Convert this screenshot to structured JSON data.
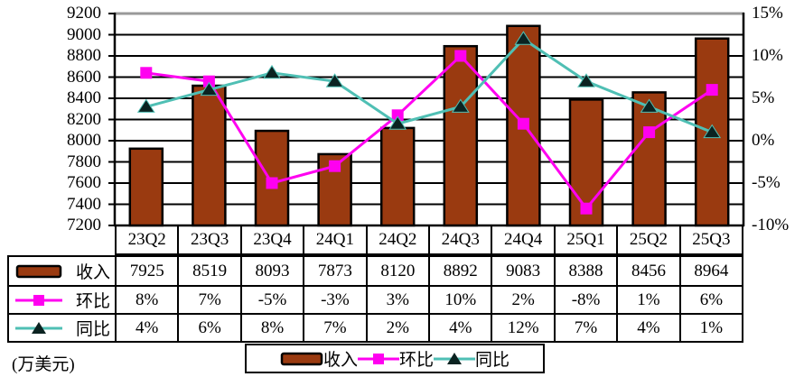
{
  "unit_label": "(万美元)",
  "colors": {
    "bar": "#9A3A10",
    "bar_border": "#000000",
    "qoq_line": "#FF00F0",
    "yoy_line": "#4FBFB4",
    "yoy_marker": "#0B2321",
    "grid": "#000000",
    "plot_top_border": "#999999",
    "text": "#000000"
  },
  "chart_data": {
    "type": "bar+line combo",
    "title": "",
    "categories": [
      "23Q2",
      "23Q3",
      "23Q4",
      "24Q1",
      "24Q2",
      "24Q3",
      "24Q4",
      "25Q1",
      "25Q2",
      "25Q3"
    ],
    "series": [
      {
        "name": "收入",
        "type": "bar",
        "axis": "left",
        "values": [
          7925,
          8519,
          8093,
          7873,
          8120,
          8892,
          9083,
          8388,
          8456,
          8964
        ]
      },
      {
        "name": "环比",
        "type": "line",
        "marker": "square",
        "axis": "right",
        "values": [
          8,
          7,
          -5,
          -3,
          3,
          10,
          2,
          -8,
          1,
          6
        ]
      },
      {
        "name": "同比",
        "type": "line",
        "marker": "triangle",
        "axis": "right",
        "values": [
          4,
          6,
          8,
          7,
          2,
          4,
          12,
          7,
          4,
          1
        ]
      }
    ],
    "left_axis": {
      "min": 7200,
      "max": 9200,
      "step": 200,
      "ticks": [
        "9200",
        "9000",
        "8800",
        "8600",
        "8400",
        "8200",
        "8000",
        "7800",
        "7600",
        "7400",
        "7200"
      ]
    },
    "right_axis": {
      "min": -10,
      "max": 15,
      "step": 5,
      "ticks": [
        "15%",
        "10%",
        "5%",
        "0%",
        "-5%",
        "-10%"
      ]
    },
    "grid": true,
    "legend_position": "bottom"
  },
  "table": {
    "header": [
      "23Q2",
      "23Q3",
      "23Q4",
      "24Q1",
      "24Q2",
      "24Q3",
      "24Q4",
      "25Q1",
      "25Q2",
      "25Q3"
    ],
    "rows": [
      {
        "label": "收入",
        "swatch": "bar",
        "values": [
          "7925",
          "8519",
          "8093",
          "7873",
          "8120",
          "8892",
          "9083",
          "8388",
          "8456",
          "8964"
        ]
      },
      {
        "label": "环比",
        "swatch": "square",
        "values": [
          "8%",
          "7%",
          "-5%",
          "-3%",
          "3%",
          "10%",
          "2%",
          "-8%",
          "1%",
          "6%"
        ]
      },
      {
        "label": "同比",
        "swatch": "triangle",
        "values": [
          "4%",
          "6%",
          "8%",
          "7%",
          "2%",
          "4%",
          "12%",
          "7%",
          "4%",
          "1%"
        ]
      }
    ]
  },
  "legend": {
    "items": [
      {
        "label": "收入",
        "swatch": "bar"
      },
      {
        "label": "环比",
        "swatch": "square"
      },
      {
        "label": "同比",
        "swatch": "triangle"
      }
    ]
  }
}
